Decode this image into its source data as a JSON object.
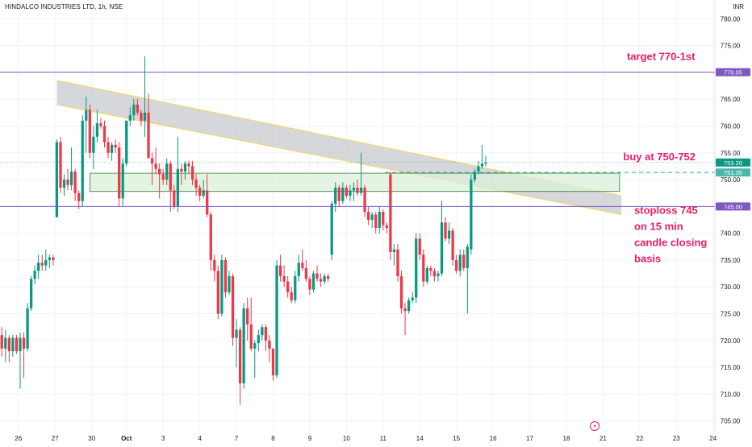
{
  "header": {
    "symbol": "HINDALCO INDUSTRIES LTD, 1h, NSE",
    "currency": "INR"
  },
  "colors": {
    "up": "#089981",
    "down": "#f23645",
    "grid": "#f0f3fa",
    "axis_text": "#131722",
    "hline": "#7e57c2",
    "annotation": "#e91e63",
    "channel_fill": "#bfc1c7",
    "channel_edge": "#f5d76e",
    "zone_fill": "#dcefd9",
    "zone_edge": "#2e7d32",
    "dashed": "#26a69a",
    "price_tag": "#089981"
  },
  "chart_data": {
    "type": "candlestick",
    "title": "HINDALCO INDUSTRIES LTD, 1h, NSE",
    "ylim": [
      703,
      782
    ],
    "y_ticks": [
      705,
      710,
      715,
      720,
      725,
      730,
      735,
      740,
      745,
      750,
      755,
      760,
      765,
      770,
      775,
      780
    ],
    "y_tick_labels": [
      "705.00",
      "710.00",
      "715.00",
      "720.00",
      "725.00",
      "730.00",
      "735.00",
      "740.00",
      "745.00",
      "750.00",
      "755.00",
      "760.00",
      "765.00",
      "770.00",
      "775.00",
      "780.00"
    ],
    "x_range": [
      0,
      195
    ],
    "x_ticks": [
      {
        "pos": 5,
        "label": "26"
      },
      {
        "pos": 15,
        "label": "27"
      },
      {
        "pos": 25,
        "label": "30"
      },
      {
        "pos": 34.5,
        "label": "Oct"
      },
      {
        "pos": 44.5,
        "label": "3"
      },
      {
        "pos": 54.5,
        "label": "4"
      },
      {
        "pos": 64.5,
        "label": "7"
      },
      {
        "pos": 74.5,
        "label": "8"
      },
      {
        "pos": 84.5,
        "label": "9"
      },
      {
        "pos": 94.5,
        "label": "10"
      },
      {
        "pos": 104.5,
        "label": "11"
      },
      {
        "pos": 114.5,
        "label": "14"
      },
      {
        "pos": 124.5,
        "label": "15"
      },
      {
        "pos": 134.5,
        "label": "16"
      },
      {
        "pos": 144.5,
        "label": "17"
      },
      {
        "pos": 154.5,
        "label": "18"
      },
      {
        "pos": 164.5,
        "label": "21"
      },
      {
        "pos": 174.5,
        "label": "22"
      },
      {
        "pos": 184.5,
        "label": "23"
      },
      {
        "pos": 194.5,
        "label": "24"
      }
    ],
    "candles": [
      {
        "o": 721,
        "h": 722.5,
        "l": 717,
        "c": 718.5
      },
      {
        "o": 718.5,
        "h": 722,
        "l": 716,
        "c": 720.5
      },
      {
        "o": 720.5,
        "h": 721,
        "l": 716,
        "c": 718
      },
      {
        "o": 718,
        "h": 721,
        "l": 717,
        "c": 720.5
      },
      {
        "o": 720.5,
        "h": 721,
        "l": 717.5,
        "c": 718
      },
      {
        "o": 718,
        "h": 721.5,
        "l": 711,
        "c": 720.5
      },
      {
        "o": 720.5,
        "h": 721.5,
        "l": 713,
        "c": 718.5
      },
      {
        "o": 718.5,
        "h": 727,
        "l": 718,
        "c": 726
      },
      {
        "o": 726,
        "h": 732,
        "l": 725.5,
        "c": 731.5
      },
      {
        "o": 731.5,
        "h": 734,
        "l": 730.5,
        "c": 733
      },
      {
        "o": 733,
        "h": 736,
        "l": 731.5,
        "c": 734.5
      },
      {
        "o": 734.5,
        "h": 736,
        "l": 733,
        "c": 734
      },
      {
        "o": 734,
        "h": 737,
        "l": 733,
        "c": 735
      },
      {
        "o": 735,
        "h": 736,
        "l": 733.5,
        "c": 735.5
      },
      {
        "o": 735.5,
        "h": 736,
        "l": 734,
        "c": 735
      },
      {
        "o": 743,
        "h": 757.5,
        "l": 743,
        "c": 757
      },
      {
        "o": 757,
        "h": 758,
        "l": 747.5,
        "c": 748.5
      },
      {
        "o": 748.5,
        "h": 751,
        "l": 747,
        "c": 750
      },
      {
        "o": 750,
        "h": 752,
        "l": 748,
        "c": 749
      },
      {
        "o": 749,
        "h": 756,
        "l": 748,
        "c": 751.5
      },
      {
        "o": 751.5,
        "h": 752,
        "l": 746,
        "c": 747.5
      },
      {
        "o": 747.5,
        "h": 748,
        "l": 744.5,
        "c": 746
      },
      {
        "o": 746,
        "h": 762,
        "l": 745,
        "c": 761
      },
      {
        "o": 761,
        "h": 765.5,
        "l": 755,
        "c": 763
      },
      {
        "o": 763,
        "h": 764,
        "l": 754,
        "c": 755
      },
      {
        "o": 755,
        "h": 760,
        "l": 752,
        "c": 758
      },
      {
        "o": 758,
        "h": 763,
        "l": 757,
        "c": 760.5
      },
      {
        "o": 760.5,
        "h": 761.5,
        "l": 759.5,
        "c": 760
      },
      {
        "o": 760,
        "h": 761,
        "l": 756,
        "c": 757
      },
      {
        "o": 757,
        "h": 758,
        "l": 754,
        "c": 755
      },
      {
        "o": 755,
        "h": 757,
        "l": 753.5,
        "c": 756.5
      },
      {
        "o": 756.5,
        "h": 757.5,
        "l": 755,
        "c": 756
      },
      {
        "o": 756,
        "h": 757,
        "l": 745,
        "c": 746.5
      },
      {
        "o": 746.5,
        "h": 754,
        "l": 745,
        "c": 753
      },
      {
        "o": 753,
        "h": 761,
        "l": 752.5,
        "c": 761
      },
      {
        "o": 761,
        "h": 763.5,
        "l": 760,
        "c": 762
      },
      {
        "o": 762,
        "h": 765,
        "l": 761,
        "c": 764
      },
      {
        "o": 764,
        "h": 765,
        "l": 762,
        "c": 762.5
      },
      {
        "o": 762.5,
        "h": 763,
        "l": 760,
        "c": 761
      },
      {
        "o": 761,
        "h": 773,
        "l": 758,
        "c": 762.5
      },
      {
        "o": 762.5,
        "h": 766,
        "l": 754,
        "c": 754
      },
      {
        "o": 754,
        "h": 755,
        "l": 749,
        "c": 753
      },
      {
        "o": 753,
        "h": 756,
        "l": 751,
        "c": 752
      },
      {
        "o": 752,
        "h": 753,
        "l": 746.5,
        "c": 751
      },
      {
        "o": 751,
        "h": 752,
        "l": 749,
        "c": 750
      },
      {
        "o": 750,
        "h": 754,
        "l": 749,
        "c": 753
      },
      {
        "o": 753,
        "h": 753.5,
        "l": 744,
        "c": 748
      },
      {
        "o": 748,
        "h": 749,
        "l": 744.5,
        "c": 745
      },
      {
        "o": 745,
        "h": 758,
        "l": 744,
        "c": 752
      },
      {
        "o": 752,
        "h": 753,
        "l": 749,
        "c": 751.5
      },
      {
        "o": 751.5,
        "h": 753.5,
        "l": 750,
        "c": 753
      },
      {
        "o": 753,
        "h": 753.5,
        "l": 751,
        "c": 752.5
      },
      {
        "o": 752.5,
        "h": 753.5,
        "l": 749,
        "c": 750
      },
      {
        "o": 750,
        "h": 751,
        "l": 747,
        "c": 748.5
      },
      {
        "o": 748.5,
        "h": 749,
        "l": 746,
        "c": 747
      },
      {
        "o": 747,
        "h": 750,
        "l": 746.5,
        "c": 748
      },
      {
        "o": 748,
        "h": 751,
        "l": 743,
        "c": 743.5
      },
      {
        "o": 743.5,
        "h": 744,
        "l": 733,
        "c": 735
      },
      {
        "o": 735,
        "h": 736,
        "l": 731,
        "c": 733
      },
      {
        "o": 733,
        "h": 734,
        "l": 724,
        "c": 725
      },
      {
        "o": 725,
        "h": 736,
        "l": 724.5,
        "c": 735
      },
      {
        "o": 735,
        "h": 735.5,
        "l": 728,
        "c": 729
      },
      {
        "o": 729,
        "h": 733,
        "l": 728.5,
        "c": 732
      },
      {
        "o": 732,
        "h": 732.5,
        "l": 719,
        "c": 720.5
      },
      {
        "o": 720.5,
        "h": 724,
        "l": 715,
        "c": 722
      },
      {
        "o": 722,
        "h": 722.5,
        "l": 708,
        "c": 712
      },
      {
        "o": 712,
        "h": 727,
        "l": 711,
        "c": 726
      },
      {
        "o": 726,
        "h": 728,
        "l": 720,
        "c": 723
      },
      {
        "o": 723,
        "h": 728,
        "l": 718,
        "c": 718.5
      },
      {
        "o": 718.5,
        "h": 720,
        "l": 713,
        "c": 719.5
      },
      {
        "o": 719.5,
        "h": 722,
        "l": 718,
        "c": 721
      },
      {
        "o": 721,
        "h": 723,
        "l": 720,
        "c": 722.5
      },
      {
        "o": 722.5,
        "h": 723,
        "l": 718,
        "c": 720
      },
      {
        "o": 720,
        "h": 721,
        "l": 716,
        "c": 718.5
      },
      {
        "o": 718.5,
        "h": 718.5,
        "l": 712.5,
        "c": 713.5
      },
      {
        "o": 713.5,
        "h": 735,
        "l": 713,
        "c": 734
      },
      {
        "o": 734,
        "h": 736,
        "l": 731,
        "c": 732
      },
      {
        "o": 732,
        "h": 734,
        "l": 730,
        "c": 731
      },
      {
        "o": 731,
        "h": 732,
        "l": 728,
        "c": 729
      },
      {
        "o": 729,
        "h": 730,
        "l": 727,
        "c": 727.5
      },
      {
        "o": 727.5,
        "h": 733,
        "l": 727,
        "c": 732
      },
      {
        "o": 732,
        "h": 736,
        "l": 731,
        "c": 734.5
      },
      {
        "o": 734.5,
        "h": 737,
        "l": 733,
        "c": 733.5
      },
      {
        "o": 733.5,
        "h": 735,
        "l": 731,
        "c": 731.5
      },
      {
        "o": 731.5,
        "h": 732,
        "l": 728.5,
        "c": 729.5
      },
      {
        "o": 729.5,
        "h": 733,
        "l": 729,
        "c": 732.5
      },
      {
        "o": 732.5,
        "h": 734,
        "l": 731,
        "c": 731.5
      },
      {
        "o": 731.5,
        "h": 732.5,
        "l": 730,
        "c": 731
      },
      {
        "o": 731,
        "h": 732.5,
        "l": 730.5,
        "c": 732
      },
      {
        "o": 732,
        "h": 732.5,
        "l": 731,
        "c": 731.5
      },
      {
        "o": 736,
        "h": 746,
        "l": 735,
        "c": 745.5
      },
      {
        "o": 745.5,
        "h": 749.5,
        "l": 744,
        "c": 748.5
      },
      {
        "o": 748.5,
        "h": 749,
        "l": 745,
        "c": 746
      },
      {
        "o": 746,
        "h": 749.5,
        "l": 745.5,
        "c": 748.5
      },
      {
        "o": 748.5,
        "h": 749,
        "l": 746.5,
        "c": 747
      },
      {
        "o": 747,
        "h": 749,
        "l": 746,
        "c": 748
      },
      {
        "o": 748,
        "h": 749.5,
        "l": 746,
        "c": 748.5
      },
      {
        "o": 748.5,
        "h": 750,
        "l": 747,
        "c": 747.5
      },
      {
        "o": 747.5,
        "h": 755,
        "l": 747,
        "c": 748.5
      },
      {
        "o": 748.5,
        "h": 749,
        "l": 743,
        "c": 744
      },
      {
        "o": 744,
        "h": 745,
        "l": 741.5,
        "c": 742.5
      },
      {
        "o": 742.5,
        "h": 744,
        "l": 741,
        "c": 743.5
      },
      {
        "o": 743.5,
        "h": 744,
        "l": 740,
        "c": 741
      },
      {
        "o": 741,
        "h": 745,
        "l": 740,
        "c": 744
      },
      {
        "o": 744,
        "h": 744.5,
        "l": 740.5,
        "c": 741.5
      },
      {
        "o": 741.5,
        "h": 742,
        "l": 740,
        "c": 741
      },
      {
        "o": 751,
        "h": 751.5,
        "l": 735,
        "c": 736.5
      },
      {
        "o": 736.5,
        "h": 738,
        "l": 734,
        "c": 737
      },
      {
        "o": 737,
        "h": 738,
        "l": 731,
        "c": 732
      },
      {
        "o": 732,
        "h": 733,
        "l": 725,
        "c": 726
      },
      {
        "o": 726,
        "h": 727,
        "l": 721,
        "c": 725.5
      },
      {
        "o": 725.5,
        "h": 728,
        "l": 725,
        "c": 727.5
      },
      {
        "o": 727.5,
        "h": 729,
        "l": 727,
        "c": 728
      },
      {
        "o": 728,
        "h": 740,
        "l": 727,
        "c": 739
      },
      {
        "o": 739,
        "h": 740,
        "l": 735,
        "c": 736
      },
      {
        "o": 736,
        "h": 737,
        "l": 730,
        "c": 731
      },
      {
        "o": 731,
        "h": 734,
        "l": 730.5,
        "c": 733.5
      },
      {
        "o": 733.5,
        "h": 734,
        "l": 732,
        "c": 733
      },
      {
        "o": 733,
        "h": 733.5,
        "l": 731,
        "c": 732
      },
      {
        "o": 732,
        "h": 733,
        "l": 731,
        "c": 732.5
      },
      {
        "o": 732.5,
        "h": 746,
        "l": 732,
        "c": 742
      },
      {
        "o": 742,
        "h": 743,
        "l": 738.5,
        "c": 739
      },
      {
        "o": 739,
        "h": 742,
        "l": 738,
        "c": 740.5
      },
      {
        "o": 740.5,
        "h": 741,
        "l": 734,
        "c": 735
      },
      {
        "o": 735,
        "h": 736,
        "l": 732.5,
        "c": 733
      },
      {
        "o": 733,
        "h": 737,
        "l": 732,
        "c": 736
      },
      {
        "o": 736,
        "h": 737,
        "l": 733,
        "c": 733.5
      },
      {
        "o": 733.5,
        "h": 738,
        "l": 725,
        "c": 737.5
      },
      {
        "o": 737,
        "h": 751,
        "l": 736,
        "c": 750
      },
      {
        "o": 750,
        "h": 752,
        "l": 749.5,
        "c": 751.5
      },
      {
        "o": 751.5,
        "h": 753.5,
        "l": 751,
        "c": 752.5
      },
      {
        "o": 752.5,
        "h": 756.5,
        "l": 752,
        "c": 753
      },
      {
        "o": 753,
        "h": 754.5,
        "l": 752.5,
        "c": 753.2
      }
    ],
    "horizontal_lines": [
      {
        "price": 770.05,
        "label": "770.05"
      },
      {
        "price": 745.0,
        "label": "745.00"
      }
    ],
    "dashed_line": {
      "price": 751.35,
      "label": "751.35"
    },
    "last_price": {
      "price": 753.2,
      "label": "753.20"
    },
    "descending_channel": {
      "x1": 15.5,
      "x2": 169.5,
      "top1": 768.5,
      "top2": 747,
      "bot1": 764,
      "bot2": 743.5
    },
    "zone": {
      "x1": 24.5,
      "x2": 169,
      "top": 751.2,
      "bottom": 747.8
    },
    "annotations": [
      {
        "text": "target 770-1st",
        "x": 171,
        "price": 772.3
      },
      {
        "text": "buy at 750-752",
        "x": 170,
        "price": 753.6
      },
      {
        "text": "stoploss 745",
        "x": 173,
        "price": 743.6
      },
      {
        "text": "on 15 min",
        "x": 173,
        "price": 740.6
      },
      {
        "text": "candle closing",
        "x": 173,
        "price": 737.6
      },
      {
        "text": "basis",
        "x": 173,
        "price": 734.6
      }
    ]
  }
}
